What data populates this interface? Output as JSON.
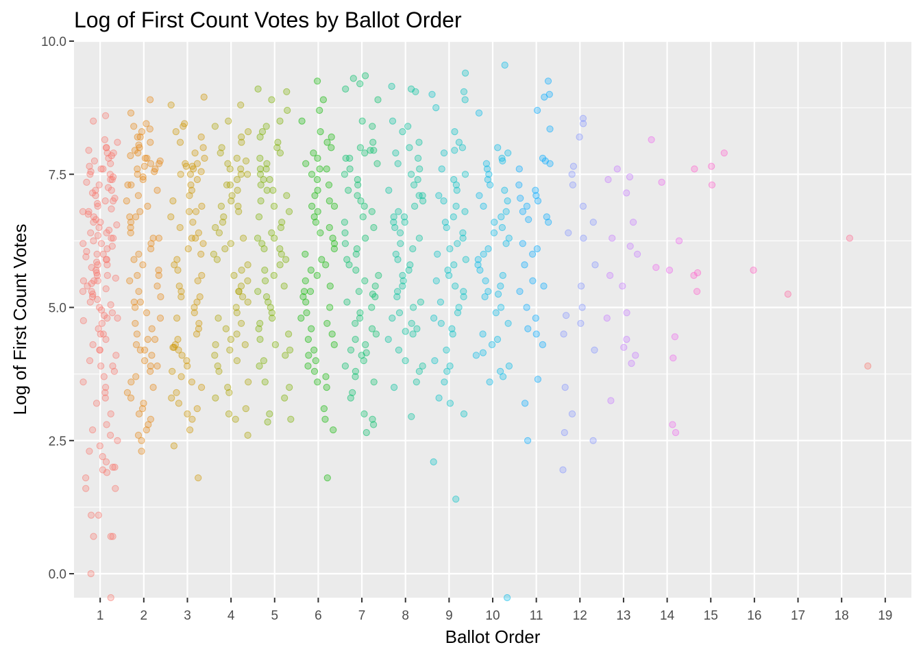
{
  "chart_data": {
    "type": "scatter",
    "title": "Log of First Count Votes by Ballot Order",
    "xlabel": "Ballot Order",
    "ylabel": "Log of First Count Votes",
    "xlim": [
      0.4,
      19.6
    ],
    "ylim": [
      -0.45,
      10.0
    ],
    "x_ticks": [
      "1",
      "2",
      "3",
      "4",
      "5",
      "6",
      "7",
      "8",
      "9",
      "10",
      "11",
      "12",
      "13",
      "14",
      "15",
      "16",
      "17",
      "18",
      "19"
    ],
    "y_ticks": [
      "0.0",
      "2.5",
      "5.0",
      "7.5",
      "10.0"
    ],
    "y_tick_values": [
      0,
      2.5,
      5,
      7.5,
      10
    ],
    "grid": true,
    "jitter": 0.4,
    "point_alpha": 0.3,
    "groups": [
      {
        "x": 1,
        "color": "#F8766D",
        "values": [
          8.6,
          8.5,
          8.15,
          8.1,
          8.0,
          8.0,
          7.95,
          7.9,
          7.9,
          7.85,
          7.8,
          7.75,
          7.7,
          7.65,
          7.6,
          7.55,
          7.5,
          7.5,
          7.45,
          7.4,
          7.35,
          7.3,
          7.25,
          7.2,
          7.15,
          7.1,
          7.05,
          7.0,
          6.95,
          6.9,
          6.85,
          6.8,
          6.75,
          6.7,
          6.65,
          6.6,
          6.55,
          6.5,
          6.45,
          6.4,
          6.35,
          6.3,
          6.3,
          6.25,
          6.2,
          6.15,
          6.1,
          6.05,
          6.0,
          5.95,
          5.9,
          5.85,
          5.8,
          5.75,
          5.7,
          5.65,
          5.6,
          5.55,
          5.5,
          5.5,
          5.45,
          5.4,
          5.35,
          5.3,
          5.25,
          5.2,
          5.15,
          5.1,
          5.05,
          5.0,
          4.95,
          4.9,
          4.85,
          4.8,
          4.75,
          4.7,
          4.6,
          4.5,
          4.4,
          4.3,
          4.2,
          4.1,
          4.0,
          3.9,
          3.8,
          3.7,
          3.6,
          3.4,
          3.3,
          3.2,
          3.0,
          2.8,
          2.7,
          2.6,
          2.5,
          2.4,
          2.3,
          2.2,
          2.1,
          2.0,
          1.95,
          1.9,
          1.8,
          1.6,
          1.6,
          1.1,
          1.1,
          0.7,
          0.7,
          0.7,
          0.0,
          -0.45,
          6.0,
          5.8,
          6.2,
          5.5,
          5.6,
          7.2,
          7.4,
          4.8,
          4.5,
          3.9,
          6.6,
          6.8,
          5.3,
          7.6,
          7.0,
          6.4,
          5.9,
          4.2,
          3.5,
          2.0
        ]
      },
      {
        "x": 2,
        "color": "#E68613",
        "values": [
          8.9,
          8.65,
          8.45,
          8.4,
          8.35,
          8.3,
          8.2,
          8.1,
          8.05,
          8.0,
          7.95,
          7.9,
          7.85,
          7.8,
          7.75,
          7.7,
          7.65,
          7.6,
          7.55,
          7.5,
          7.45,
          7.4,
          7.3,
          7.2,
          7.1,
          7.0,
          6.9,
          6.8,
          6.7,
          6.6,
          6.5,
          6.4,
          6.3,
          6.2,
          6.1,
          6.0,
          5.9,
          5.8,
          5.7,
          5.6,
          5.5,
          5.4,
          5.3,
          5.2,
          5.1,
          5.0,
          4.9,
          4.8,
          4.7,
          4.6,
          4.5,
          4.4,
          4.3,
          4.2,
          4.1,
          4.0,
          3.9,
          3.8,
          3.7,
          3.6,
          3.5,
          3.4,
          3.3,
          3.2,
          3.1,
          3.0,
          2.9,
          2.8,
          2.7,
          2.6,
          2.5,
          2.3,
          7.8,
          7.6,
          6.3,
          5.6,
          4.4,
          4.2,
          3.9,
          6.7,
          7.3,
          5.1,
          8.2,
          7.7
        ]
      },
      {
        "x": 3,
        "color": "#CD9600",
        "values": [
          8.95,
          8.8,
          8.45,
          8.4,
          8.3,
          8.2,
          8.1,
          8.0,
          7.9,
          7.8,
          7.7,
          7.65,
          7.6,
          7.55,
          7.5,
          7.4,
          7.3,
          7.2,
          7.1,
          7.0,
          6.9,
          6.8,
          6.7,
          6.6,
          6.5,
          6.4,
          6.3,
          6.2,
          6.1,
          6.0,
          5.9,
          5.8,
          5.7,
          5.6,
          5.5,
          5.4,
          5.3,
          5.2,
          5.1,
          5.0,
          4.9,
          4.8,
          4.7,
          4.6,
          4.5,
          4.4,
          4.3,
          4.25,
          4.2,
          4.1,
          4.0,
          3.9,
          3.8,
          3.7,
          3.6,
          3.5,
          3.4,
          3.3,
          3.2,
          3.1,
          3.0,
          2.9,
          2.7,
          2.4,
          1.8,
          7.7,
          7.65,
          6.3,
          5.2,
          4.25,
          7.5,
          6.8
        ]
      },
      {
        "x": 4,
        "color": "#ABA300",
        "values": [
          8.8,
          8.5,
          8.4,
          8.3,
          8.2,
          8.1,
          8.0,
          7.9,
          7.8,
          7.75,
          7.7,
          7.6,
          7.5,
          7.4,
          7.3,
          7.2,
          7.1,
          7.0,
          6.9,
          6.8,
          6.7,
          6.6,
          6.5,
          6.4,
          6.3,
          6.2,
          6.1,
          6.0,
          5.9,
          5.8,
          5.7,
          5.6,
          5.5,
          5.4,
          5.3,
          5.2,
          5.1,
          5.0,
          4.9,
          4.8,
          4.7,
          4.6,
          4.5,
          4.4,
          4.3,
          4.2,
          4.1,
          4.0,
          3.9,
          3.8,
          3.6,
          3.5,
          3.4,
          3.3,
          3.1,
          3.0,
          2.9,
          2.6,
          7.5,
          7.6,
          7.3,
          6.9,
          5.3,
          4.3
        ]
      },
      {
        "x": 5,
        "color": "#7CAE00",
        "values": [
          9.1,
          9.05,
          8.9,
          8.7,
          8.5,
          8.4,
          8.3,
          8.2,
          8.1,
          8.0,
          7.9,
          7.8,
          7.7,
          7.6,
          7.5,
          7.4,
          7.3,
          7.2,
          7.1,
          7.0,
          6.9,
          6.8,
          6.7,
          6.6,
          6.5,
          6.4,
          6.3,
          6.2,
          6.1,
          6.0,
          5.9,
          5.8,
          5.7,
          5.6,
          5.5,
          5.4,
          5.3,
          5.2,
          5.1,
          5.0,
          4.9,
          4.8,
          4.7,
          4.6,
          4.5,
          4.4,
          4.3,
          4.2,
          4.1,
          4.0,
          3.9,
          3.6,
          3.5,
          3.3,
          3.0,
          2.9,
          2.85,
          7.6,
          7.4,
          6.1,
          6.3,
          7.2
        ]
      },
      {
        "x": 6,
        "color": "#0CB702",
        "values": [
          9.25,
          8.9,
          8.7,
          8.5,
          8.3,
          8.2,
          8.1,
          8.0,
          7.9,
          7.8,
          7.7,
          7.6,
          7.5,
          7.4,
          7.3,
          7.2,
          7.1,
          7.0,
          6.9,
          6.8,
          6.7,
          6.6,
          6.5,
          6.4,
          6.3,
          6.2,
          6.1,
          6.0,
          5.9,
          5.8,
          5.7,
          5.6,
          5.5,
          5.4,
          5.3,
          5.2,
          5.1,
          5.0,
          4.9,
          4.8,
          4.7,
          4.6,
          4.5,
          4.4,
          4.3,
          4.2,
          4.1,
          4.0,
          3.9,
          3.8,
          3.7,
          3.6,
          3.5,
          3.1,
          2.9,
          2.7,
          1.8,
          6.9,
          7.6,
          5.3
        ]
      },
      {
        "x": 7,
        "color": "#00BE67",
        "values": [
          9.35,
          9.3,
          9.2,
          9.1,
          8.9,
          8.5,
          8.4,
          8.1,
          8.0,
          7.95,
          7.9,
          7.8,
          7.7,
          7.6,
          7.5,
          7.4,
          7.3,
          7.2,
          7.1,
          7.0,
          6.9,
          6.8,
          6.7,
          6.6,
          6.5,
          6.4,
          6.3,
          6.2,
          6.1,
          6.0,
          5.9,
          5.8,
          5.7,
          5.6,
          5.5,
          5.4,
          5.3,
          5.2,
          5.1,
          5.0,
          4.9,
          4.8,
          4.7,
          4.6,
          4.5,
          4.4,
          4.3,
          4.2,
          4.15,
          4.1,
          4.0,
          3.9,
          3.8,
          3.7,
          3.6,
          3.4,
          3.3,
          3.0,
          2.9,
          2.8,
          2.65,
          7.95,
          7.8,
          5.25
        ]
      },
      {
        "x": 8,
        "color": "#00C19A",
        "values": [
          9.15,
          9.1,
          9.05,
          8.5,
          8.4,
          8.3,
          8.1,
          8.0,
          7.9,
          7.8,
          7.7,
          7.6,
          7.5,
          7.4,
          7.3,
          7.2,
          7.1,
          7.0,
          6.9,
          6.8,
          6.7,
          6.6,
          6.5,
          6.4,
          6.3,
          6.2,
          6.1,
          6.0,
          5.9,
          5.8,
          5.7,
          5.6,
          5.5,
          5.4,
          5.3,
          5.2,
          5.1,
          5.0,
          4.9,
          4.8,
          4.7,
          4.6,
          4.55,
          4.5,
          4.4,
          4.2,
          4.0,
          3.9,
          3.8,
          3.6,
          3.5,
          2.95,
          6.7,
          6.6,
          7.1
        ]
      },
      {
        "x": 9,
        "color": "#00BFC4",
        "values": [
          9.4,
          9.05,
          9.0,
          8.9,
          8.75,
          8.3,
          8.1,
          8.0,
          7.95,
          7.9,
          7.6,
          7.5,
          7.4,
          7.3,
          7.2,
          7.1,
          7.0,
          6.9,
          6.8,
          6.7,
          6.6,
          6.5,
          6.4,
          6.3,
          6.2,
          6.1,
          6.0,
          5.9,
          5.8,
          5.7,
          5.6,
          5.5,
          5.4,
          5.3,
          5.2,
          5.1,
          5.0,
          4.9,
          4.8,
          4.7,
          4.6,
          4.5,
          4.2,
          4.0,
          3.9,
          3.8,
          3.6,
          3.3,
          3.2,
          3.0,
          2.1,
          1.4
        ]
      },
      {
        "x": 10,
        "color": "#00B8E7",
        "values": [
          9.55,
          8.65,
          8.0,
          7.9,
          7.8,
          7.75,
          7.7,
          7.6,
          7.5,
          7.4,
          7.3,
          7.2,
          7.1,
          7.0,
          6.9,
          6.8,
          6.7,
          6.6,
          6.5,
          6.4,
          6.3,
          6.2,
          6.1,
          6.0,
          5.9,
          5.8,
          5.7,
          5.6,
          5.5,
          5.4,
          5.3,
          5.25,
          5.2,
          5.0,
          4.9,
          4.7,
          4.5,
          4.4,
          4.3,
          4.15,
          4.1,
          3.9,
          3.8,
          3.7,
          3.6,
          -0.45
        ]
      },
      {
        "x": 11,
        "color": "#00A9FF",
        "values": [
          9.25,
          9.0,
          8.95,
          8.7,
          8.35,
          7.8,
          7.75,
          7.7,
          7.6,
          7.3,
          7.2,
          7.1,
          7.05,
          7.0,
          6.9,
          6.8,
          6.7,
          6.65,
          6.6,
          6.2,
          6.1,
          6.0,
          5.8,
          5.5,
          5.4,
          5.3,
          5.0,
          4.8,
          4.6,
          4.5,
          4.3,
          3.65,
          3.2,
          2.5
        ]
      },
      {
        "x": 12,
        "color": "#8494FF",
        "values": [
          8.55,
          8.45,
          8.2,
          7.65,
          7.5,
          7.3,
          6.9,
          6.6,
          6.4,
          6.3,
          5.8,
          5.4,
          5.0,
          4.85,
          4.7,
          4.5,
          4.2,
          3.5,
          3.0,
          2.65,
          2.5,
          1.95
        ]
      },
      {
        "x": 13,
        "color": "#C77CFF",
        "values": [
          7.6,
          7.45,
          7.4,
          7.15,
          6.6,
          6.3,
          6.15,
          6.0,
          5.6,
          5.4,
          4.9,
          4.8,
          4.4,
          4.25,
          4.1,
          3.95,
          3.25
        ]
      },
      {
        "x": 14,
        "color": "#ED68ED",
        "values": [
          8.15,
          7.35,
          6.25,
          5.75,
          5.7,
          4.45,
          4.05,
          2.8,
          2.65
        ]
      },
      {
        "x": 15,
        "color": "#FF61CC",
        "values": [
          7.9,
          7.65,
          7.6,
          7.3,
          5.65,
          5.6,
          5.3
        ]
      },
      {
        "x": 16,
        "color": "#FF61C3",
        "values": [
          5.7
        ]
      },
      {
        "x": 17,
        "color": "#FF68A1",
        "values": [
          5.25
        ]
      },
      {
        "x": 18,
        "color": "#FF6C91",
        "values": [
          6.3
        ]
      },
      {
        "x": 19,
        "color": "#F8766D",
        "values": [
          3.9
        ]
      }
    ]
  }
}
